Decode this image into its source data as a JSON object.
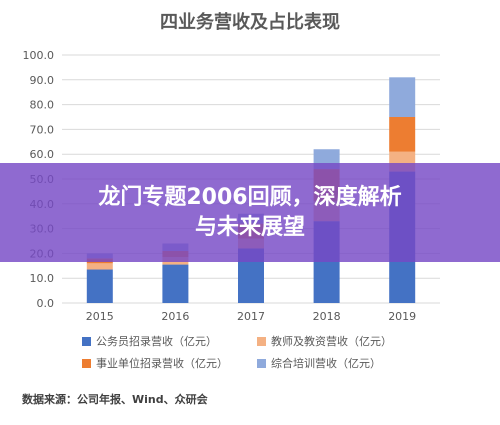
{
  "chart_title": "四业务营收及占比表现",
  "chart_data": {
    "type": "bar",
    "stacked": true,
    "title": "四业务营收及占比表现",
    "categories": [
      "2015",
      "2016",
      "2017",
      "2018",
      "2019"
    ],
    "series": [
      {
        "name": "公务员招录营收（亿元）",
        "color": "#4472C4",
        "values": [
          13.5,
          15.5,
          22,
          33,
          53
        ]
      },
      {
        "name": "教师及教资营收（亿元）",
        "color": "#F4B183",
        "values": [
          2.5,
          3,
          4,
          8,
          8
        ]
      },
      {
        "name": "事业单位招录营收（亿元）",
        "color": "#ED7D31",
        "values": [
          2,
          2.5,
          6,
          13,
          14
        ]
      },
      {
        "name": "综合培训营收（亿元）",
        "color": "#8FAADC",
        "values": [
          2,
          3,
          4,
          8,
          16
        ]
      }
    ],
    "yticks": [
      "0.0",
      "10.0",
      "20.0",
      "30.0",
      "40.0",
      "50.0",
      "60.0",
      "70.0",
      "80.0",
      "90.0",
      "100.0"
    ],
    "ylim": [
      0,
      100
    ],
    "grid": true,
    "legend_position": "bottom"
  },
  "source": "数据来源：公司年报、Wind、众研会",
  "banner": {
    "line1": "龙门专题2006回顾，深度解析",
    "line2": "与未来展望",
    "color": "#7649C6"
  }
}
